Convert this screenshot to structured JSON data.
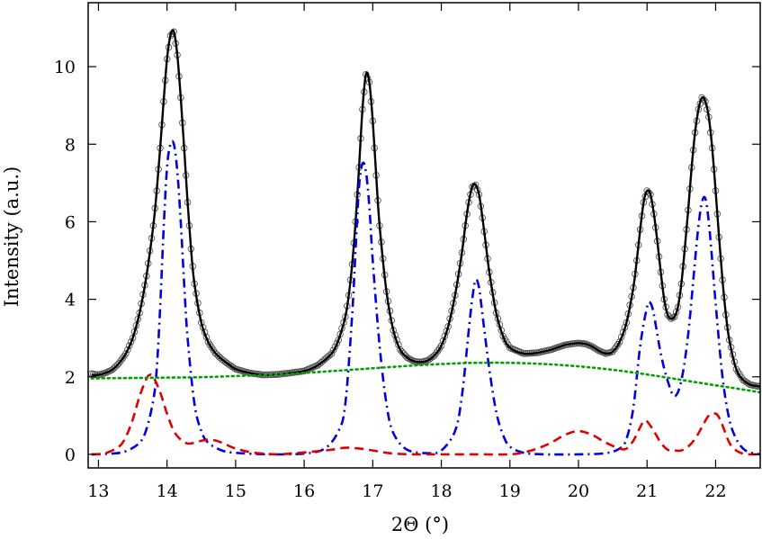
{
  "chart_data": {
    "type": "line",
    "title": "",
    "xlabel": "2Θ (°)",
    "ylabel": "Intensity (a.u.)",
    "xlim": [
      12.85,
      22.65
    ],
    "ylim": [
      -0.35,
      11.65
    ],
    "xticks": [
      13,
      14,
      15,
      16,
      17,
      18,
      19,
      20,
      21,
      22
    ],
    "yticks": [
      0,
      2,
      4,
      6,
      8,
      10
    ],
    "grid": false,
    "legend": "none",
    "series": [
      {
        "style": "open-circle markers",
        "color": "#555555",
        "x": [
          12.9,
          13.0,
          13.1,
          13.2,
          13.3,
          13.4,
          13.5,
          13.6,
          13.7,
          13.8,
          13.85,
          13.9,
          13.95,
          14.0,
          14.05,
          14.1,
          14.15,
          14.2,
          14.25,
          14.3,
          14.35,
          14.4,
          14.5,
          14.6,
          14.7,
          14.8,
          14.9,
          15.0,
          15.2,
          15.4,
          15.6,
          15.8,
          16.0,
          16.2,
          16.4,
          16.5,
          16.6,
          16.65,
          16.7,
          16.75,
          16.8,
          16.85,
          16.9,
          16.95,
          17.0,
          17.05,
          17.1,
          17.2,
          17.3,
          17.4,
          17.5,
          17.6,
          17.7,
          17.8,
          17.9,
          18.0,
          18.1,
          18.2,
          18.3,
          18.35,
          18.4,
          18.45,
          18.5,
          18.55,
          18.6,
          18.65,
          18.7,
          18.8,
          18.9,
          19.0,
          19.2,
          19.4,
          19.6,
          19.8,
          19.9,
          20.0,
          20.1,
          20.2,
          20.3,
          20.4,
          20.5,
          20.6,
          20.7,
          20.8,
          20.85,
          20.9,
          20.95,
          21.0,
          21.05,
          21.1,
          21.15,
          21.2,
          21.25,
          21.3,
          21.35,
          21.4,
          21.45,
          21.5,
          21.55,
          21.6,
          21.65,
          21.7,
          21.75,
          21.8,
          21.85,
          21.9,
          21.95,
          22.0,
          22.05,
          22.1,
          22.15,
          22.2,
          22.3,
          22.4,
          22.5,
          22.6,
          22.65
        ],
        "y": [
          2.08,
          2.05,
          2.1,
          2.18,
          2.35,
          2.6,
          3.0,
          3.65,
          4.6,
          5.9,
          6.8,
          7.9,
          9.1,
          10.2,
          10.8,
          10.9,
          10.3,
          9.2,
          7.9,
          6.5,
          5.3,
          4.4,
          3.4,
          2.9,
          2.62,
          2.45,
          2.32,
          2.2,
          2.1,
          2.05,
          2.06,
          2.1,
          2.15,
          2.3,
          2.6,
          2.95,
          3.55,
          4.1,
          4.9,
          6.0,
          7.4,
          8.9,
          9.8,
          9.6,
          8.6,
          7.2,
          5.9,
          4.2,
          3.2,
          2.7,
          2.5,
          2.4,
          2.38,
          2.42,
          2.55,
          2.8,
          3.3,
          4.1,
          5.2,
          5.9,
          6.5,
          6.9,
          6.95,
          6.7,
          6.1,
          5.4,
          4.7,
          3.65,
          3.05,
          2.75,
          2.6,
          2.62,
          2.7,
          2.82,
          2.85,
          2.87,
          2.85,
          2.78,
          2.67,
          2.6,
          2.65,
          2.9,
          3.4,
          4.3,
          5.0,
          5.8,
          6.5,
          6.8,
          6.7,
          6.2,
          5.5,
          4.7,
          4.0,
          3.6,
          3.5,
          3.55,
          3.8,
          4.4,
          5.3,
          6.3,
          7.4,
          8.3,
          8.9,
          9.2,
          9.1,
          8.7,
          7.9,
          6.8,
          5.6,
          4.5,
          3.6,
          2.95,
          2.2,
          1.92,
          1.8,
          1.76,
          1.75
        ]
      },
      {
        "style": "solid",
        "color": "#000000",
        "x": [
          12.9,
          13.0,
          13.1,
          13.2,
          13.3,
          13.4,
          13.5,
          13.6,
          13.7,
          13.8,
          13.85,
          13.9,
          13.95,
          14.0,
          14.05,
          14.1,
          14.15,
          14.2,
          14.25,
          14.3,
          14.35,
          14.4,
          14.5,
          14.6,
          14.7,
          14.8,
          14.9,
          15.0,
          15.2,
          15.4,
          15.6,
          15.8,
          16.0,
          16.2,
          16.4,
          16.5,
          16.6,
          16.65,
          16.7,
          16.75,
          16.8,
          16.85,
          16.9,
          16.95,
          17.0,
          17.05,
          17.1,
          17.2,
          17.3,
          17.4,
          17.5,
          17.6,
          17.7,
          17.8,
          17.9,
          18.0,
          18.1,
          18.2,
          18.3,
          18.35,
          18.4,
          18.45,
          18.5,
          18.55,
          18.6,
          18.65,
          18.7,
          18.8,
          18.9,
          19.0,
          19.2,
          19.4,
          19.6,
          19.8,
          19.9,
          20.0,
          20.1,
          20.2,
          20.3,
          20.4,
          20.5,
          20.6,
          20.7,
          20.8,
          20.85,
          20.9,
          20.95,
          21.0,
          21.05,
          21.1,
          21.15,
          21.2,
          21.25,
          21.3,
          21.35,
          21.4,
          21.45,
          21.5,
          21.55,
          21.6,
          21.65,
          21.7,
          21.75,
          21.8,
          21.85,
          21.9,
          21.95,
          22.0,
          22.05,
          22.1,
          22.15,
          22.2,
          22.3,
          22.4,
          22.5,
          22.6,
          22.65
        ],
        "y": [
          2.05,
          2.05,
          2.1,
          2.18,
          2.35,
          2.6,
          3.0,
          3.65,
          4.6,
          5.9,
          6.8,
          7.9,
          9.1,
          10.2,
          10.8,
          10.9,
          10.3,
          9.2,
          7.9,
          6.5,
          5.3,
          4.4,
          3.4,
          2.9,
          2.62,
          2.45,
          2.32,
          2.2,
          2.1,
          2.05,
          2.06,
          2.1,
          2.15,
          2.3,
          2.6,
          2.95,
          3.55,
          4.1,
          4.9,
          6.0,
          7.4,
          8.9,
          9.8,
          9.6,
          8.6,
          7.2,
          5.9,
          4.2,
          3.2,
          2.7,
          2.5,
          2.4,
          2.38,
          2.42,
          2.55,
          2.8,
          3.3,
          4.1,
          5.2,
          5.9,
          6.5,
          6.9,
          6.95,
          6.7,
          6.1,
          5.4,
          4.7,
          3.65,
          3.05,
          2.75,
          2.6,
          2.62,
          2.7,
          2.82,
          2.85,
          2.87,
          2.85,
          2.78,
          2.67,
          2.6,
          2.65,
          2.9,
          3.4,
          4.3,
          5.0,
          5.8,
          6.5,
          6.8,
          6.7,
          6.2,
          5.5,
          4.7,
          4.0,
          3.6,
          3.5,
          3.55,
          3.8,
          4.4,
          5.3,
          6.3,
          7.4,
          8.3,
          8.9,
          9.2,
          9.1,
          8.7,
          7.9,
          6.8,
          5.6,
          4.5,
          3.6,
          2.95,
          2.2,
          1.92,
          1.8,
          1.76,
          1.75
        ]
      },
      {
        "style": "dash-dot",
        "color": "#0000e0",
        "x": [
          12.9,
          13.2,
          13.4,
          13.6,
          13.7,
          13.8,
          13.85,
          13.9,
          13.95,
          14.0,
          14.05,
          14.1,
          14.15,
          14.2,
          14.25,
          14.3,
          14.4,
          14.5,
          14.6,
          14.8,
          15.0,
          15.5,
          16.0,
          16.3,
          16.5,
          16.6,
          16.7,
          16.75,
          16.8,
          16.85,
          16.9,
          16.95,
          17.0,
          17.1,
          17.2,
          17.3,
          17.5,
          17.8,
          18.0,
          18.2,
          18.3,
          18.4,
          18.45,
          18.5,
          18.55,
          18.6,
          18.7,
          18.8,
          18.9,
          19.0,
          19.2,
          19.5,
          20.0,
          20.4,
          20.6,
          20.7,
          20.8,
          20.9,
          21.0,
          21.05,
          21.1,
          21.2,
          21.3,
          21.4,
          21.5,
          21.6,
          21.7,
          21.75,
          21.8,
          21.85,
          21.9,
          21.95,
          22.0,
          22.1,
          22.2,
          22.3,
          22.4,
          22.5,
          22.65
        ],
        "y": [
          0.0,
          0.02,
          0.08,
          0.3,
          0.65,
          1.4,
          2.2,
          3.8,
          5.8,
          7.4,
          8.0,
          8.0,
          7.3,
          6.0,
          4.4,
          3.0,
          1.3,
          0.6,
          0.3,
          0.1,
          0.04,
          0.0,
          0.02,
          0.15,
          0.6,
          1.3,
          3.6,
          5.3,
          6.9,
          7.5,
          7.3,
          6.4,
          5.0,
          2.8,
          1.3,
          0.55,
          0.12,
          0.03,
          0.1,
          0.6,
          1.5,
          3.2,
          4.0,
          4.5,
          4.3,
          3.6,
          2.2,
          1.1,
          0.5,
          0.2,
          0.04,
          0.0,
          0.0,
          0.03,
          0.15,
          0.4,
          1.2,
          2.8,
          3.8,
          3.9,
          3.6,
          2.6,
          1.9,
          1.5,
          1.9,
          3.1,
          5.0,
          5.9,
          6.5,
          6.6,
          6.0,
          5.0,
          3.9,
          2.0,
          0.9,
          0.4,
          0.15,
          0.05,
          0.0
        ]
      },
      {
        "style": "dashed",
        "color": "#e00000",
        "x": [
          12.9,
          13.1,
          13.3,
          13.4,
          13.5,
          13.6,
          13.7,
          13.75,
          13.8,
          13.9,
          14.0,
          14.1,
          14.2,
          14.3,
          14.4,
          14.5,
          14.6,
          14.7,
          14.8,
          14.9,
          15.0,
          15.2,
          15.4,
          15.6,
          15.8,
          16.0,
          16.2,
          16.4,
          16.6,
          16.8,
          17.0,
          17.2,
          17.4,
          17.6,
          17.8,
          18.0,
          18.5,
          19.0,
          19.2,
          19.4,
          19.6,
          19.8,
          20.0,
          20.2,
          20.4,
          20.6,
          20.7,
          20.8,
          20.9,
          20.95,
          21.0,
          21.1,
          21.2,
          21.3,
          21.4,
          21.5,
          21.6,
          21.7,
          21.8,
          21.9,
          22.0,
          22.05,
          22.1,
          22.2,
          22.3,
          22.4,
          22.5,
          22.65
        ],
        "y": [
          0.0,
          0.03,
          0.2,
          0.45,
          0.9,
          1.5,
          1.95,
          2.05,
          2.0,
          1.6,
          1.05,
          0.6,
          0.38,
          0.28,
          0.3,
          0.35,
          0.38,
          0.36,
          0.3,
          0.22,
          0.15,
          0.06,
          0.02,
          0.0,
          0.02,
          0.05,
          0.08,
          0.12,
          0.17,
          0.15,
          0.1,
          0.04,
          0.01,
          0.0,
          0.0,
          0.0,
          0.0,
          0.0,
          0.05,
          0.15,
          0.3,
          0.5,
          0.6,
          0.5,
          0.3,
          0.15,
          0.15,
          0.35,
          0.7,
          0.85,
          0.85,
          0.6,
          0.3,
          0.12,
          0.1,
          0.1,
          0.2,
          0.4,
          0.7,
          1.0,
          1.05,
          0.95,
          0.75,
          0.3,
          0.1,
          0.02,
          0.0,
          0.0
        ]
      },
      {
        "style": "dotted",
        "color": "#00a000",
        "x": [
          12.9,
          13.5,
          14.0,
          14.5,
          15.0,
          15.5,
          16.0,
          16.5,
          17.0,
          17.5,
          18.0,
          18.5,
          19.0,
          19.5,
          20.0,
          20.5,
          21.0,
          21.5,
          22.0,
          22.3,
          22.65
        ],
        "y": [
          1.96,
          1.97,
          1.98,
          1.99,
          2.02,
          2.05,
          2.1,
          2.16,
          2.22,
          2.28,
          2.33,
          2.36,
          2.36,
          2.33,
          2.27,
          2.18,
          2.06,
          1.92,
          1.78,
          1.7,
          1.6
        ]
      }
    ]
  }
}
